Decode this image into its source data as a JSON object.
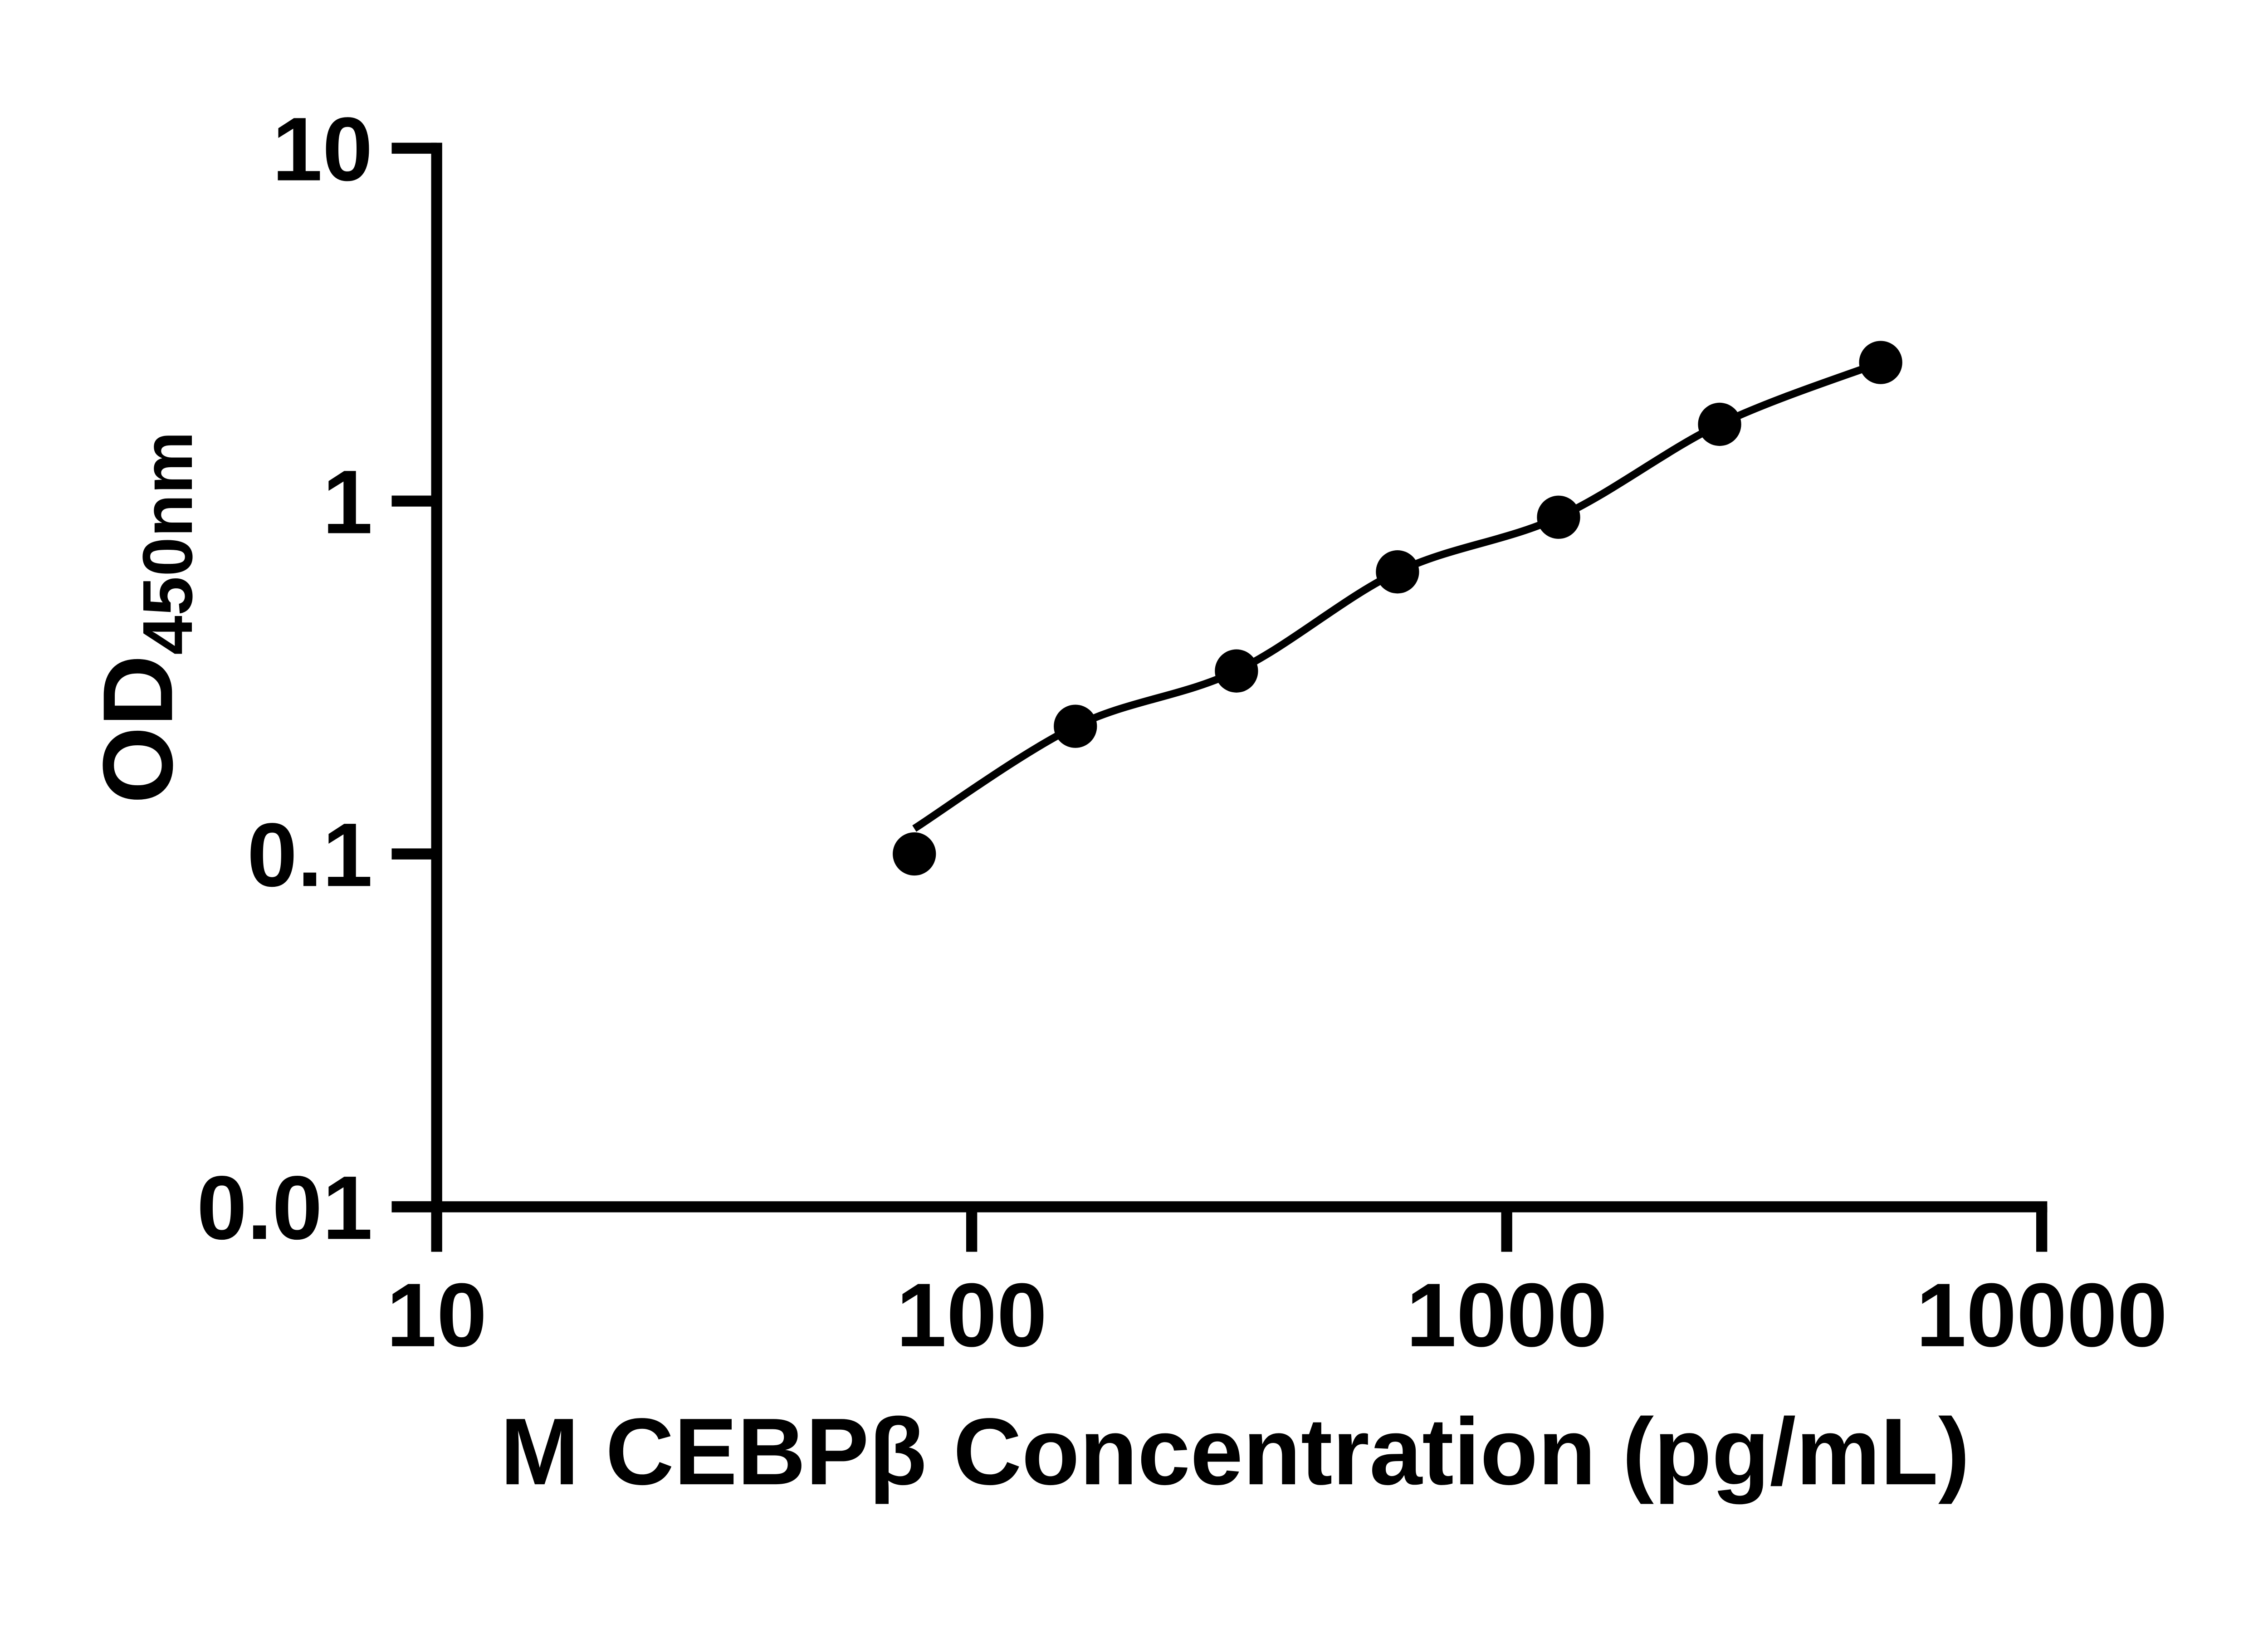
{
  "chart_data": {
    "type": "scatter",
    "title": "",
    "xlabel": "M CEBPβ Concentration (pg/mL)",
    "ylabel_main": "OD",
    "ylabel_subscript": "450nm",
    "x_scale": "log",
    "y_scale": "log",
    "xlim": [
      10,
      10000
    ],
    "ylim": [
      0.01,
      10
    ],
    "x_ticks": [
      {
        "value": 10,
        "label": "10"
      },
      {
        "value": 100,
        "label": "100"
      },
      {
        "value": 1000,
        "label": "1000"
      },
      {
        "value": 10000,
        "label": "10000"
      }
    ],
    "y_ticks": [
      {
        "value": 10,
        "label": "10"
      },
      {
        "value": 1,
        "label": "1"
      },
      {
        "value": 0.1,
        "label": "0.1"
      },
      {
        "value": 0.01,
        "label": "0.01"
      }
    ],
    "grid": false,
    "legend": "none",
    "series": [
      {
        "name": "standard-curve-points",
        "marker": "filled-circle",
        "x": [
          78.125,
          156.25,
          312.5,
          625,
          1250,
          2500,
          5000
        ],
        "y": [
          0.1,
          0.23,
          0.33,
          0.63,
          0.9,
          1.65,
          2.47
        ]
      }
    ],
    "fit_line": {
      "name": "standard-curve-fit-line",
      "x": [
        78.125,
        156.25,
        312.5,
        625,
        1250,
        2500,
        5000
      ],
      "y": [
        0.118,
        0.23,
        0.33,
        0.63,
        0.9,
        1.65,
        2.47
      ]
    },
    "colors": {
      "axis": "#000000",
      "marker": "#000000",
      "line": "#000000",
      "background": "#ffffff"
    }
  }
}
